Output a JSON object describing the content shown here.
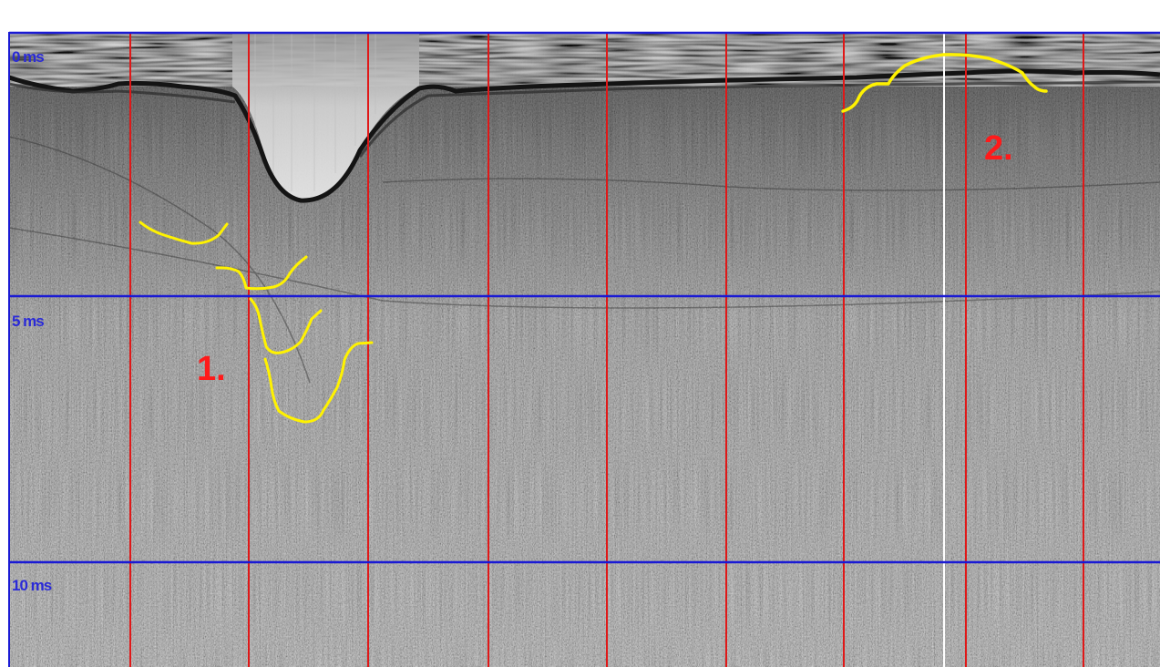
{
  "time_labels": {
    "t0": "0 ms",
    "t5": "5 ms",
    "t10": "10 ms"
  },
  "annotations": {
    "one": "1.",
    "two": "2."
  },
  "colors": {
    "time_line": "#1a1ad4",
    "grid_line": "#e01818",
    "marker_line": "#ffffff",
    "trace": "#fff200",
    "annotation_text": "#ff1a1a",
    "time_text": "#2a2ad8"
  }
}
